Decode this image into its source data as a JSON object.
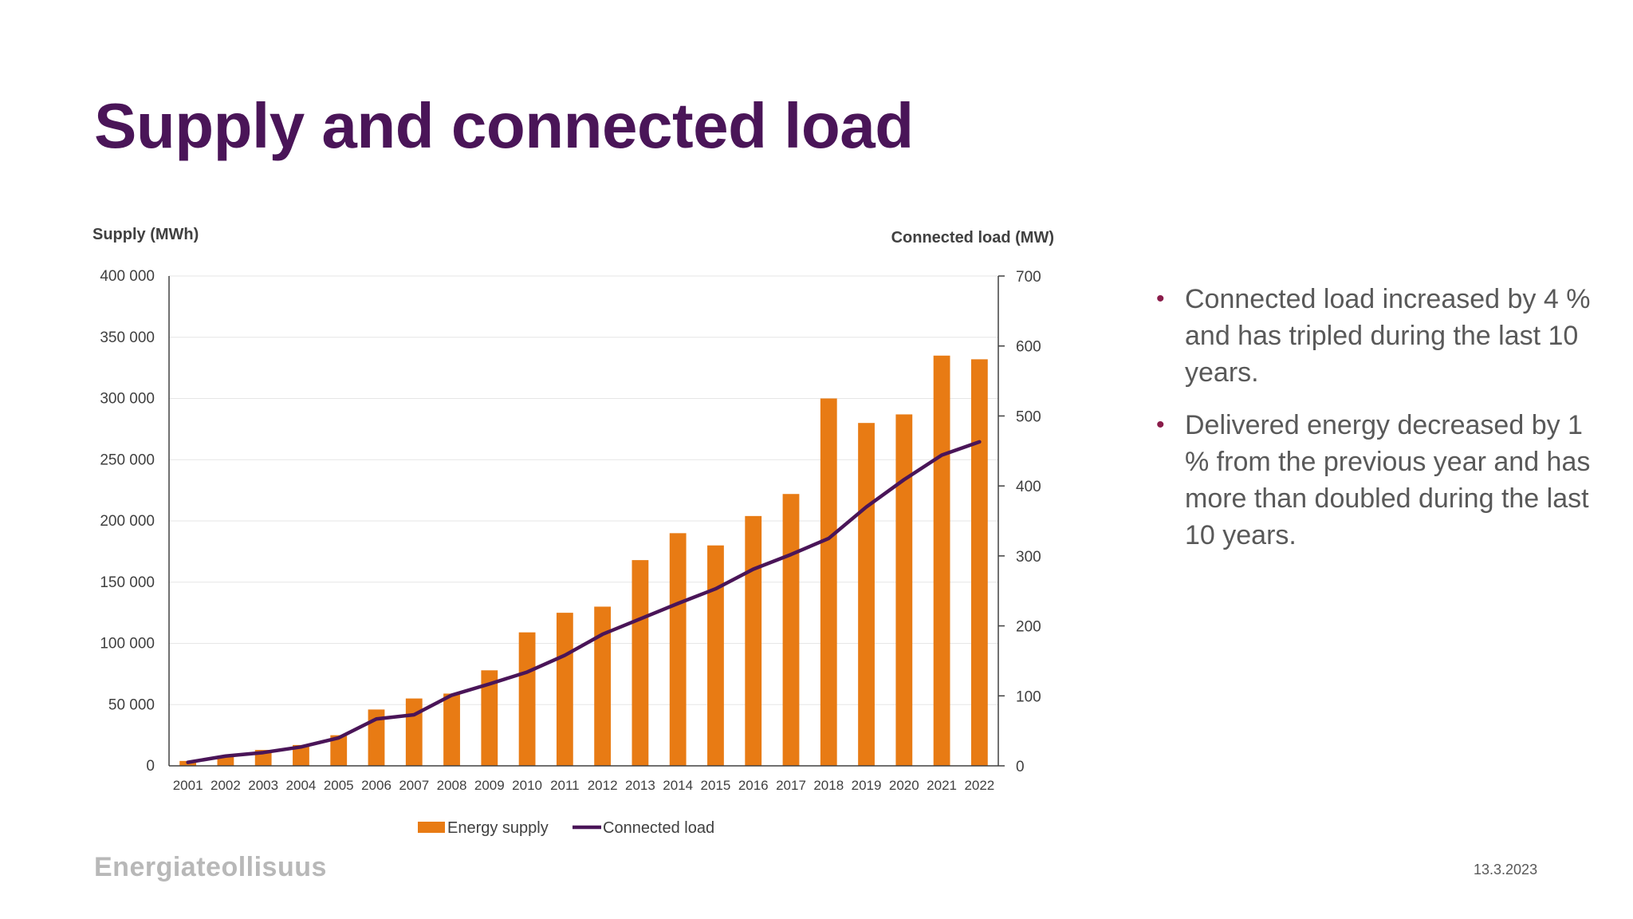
{
  "slide": {
    "title": "Supply and connected load",
    "bullets": [
      "Connected load increased by 4 % and has tripled during the last 10 years.",
      "Delivered energy decreased by 1 % from the previous year and has more than doubled during the last 10 years."
    ],
    "footer_logo": "Energiateollisuus",
    "date": "13.3.2023"
  },
  "colors": {
    "title": "#4a1558",
    "bar": "#e87b14",
    "line": "#4a1558",
    "bullet": "#8a1c4a",
    "text": "#595959"
  },
  "chart_data": {
    "type": "bar",
    "categories": [
      "2001",
      "2002",
      "2003",
      "2004",
      "2005",
      "2006",
      "2007",
      "2008",
      "2009",
      "2010",
      "2011",
      "2012",
      "2013",
      "2014",
      "2015",
      "2016",
      "2017",
      "2018",
      "2019",
      "2020",
      "2021",
      "2022"
    ],
    "series": [
      {
        "name": "Energy supply",
        "type": "bar",
        "axis": "left",
        "values": [
          4000,
          8000,
          13000,
          17000,
          25000,
          46000,
          55000,
          59000,
          78000,
          109000,
          125000,
          130000,
          168000,
          190000,
          180000,
          204000,
          222000,
          300000,
          280000,
          287000,
          335000,
          332000
        ]
      },
      {
        "name": "Connected load",
        "type": "line",
        "axis": "right",
        "values": [
          5,
          14,
          19,
          27,
          40,
          67,
          73,
          101,
          117,
          134,
          158,
          188,
          210,
          232,
          253,
          281,
          302,
          325,
          370,
          409,
          444,
          463
        ]
      }
    ],
    "ylabel": "Supply (MWh)",
    "y2label": "Connected load (MW)",
    "ylim": [
      0,
      400000
    ],
    "y2lim": [
      0,
      700
    ],
    "yticks": [
      "0",
      "50 000",
      "100 000",
      "150 000",
      "200 000",
      "250 000",
      "300 000",
      "350 000",
      "400 000"
    ],
    "y2ticks": [
      "0",
      "100",
      "200",
      "300",
      "400",
      "500",
      "600",
      "700"
    ],
    "grid": true,
    "legend": "bottom-center"
  }
}
